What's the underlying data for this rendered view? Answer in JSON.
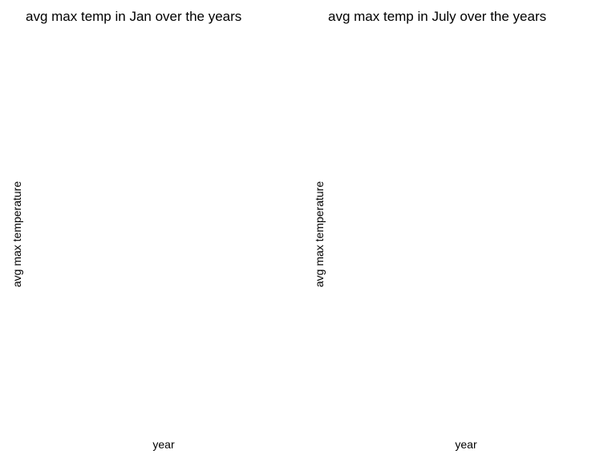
{
  "chart_data": [
    {
      "type": "line",
      "title": "avg max temp in Jan over the years",
      "xlabel": "year",
      "ylabel": "avg max temperature",
      "series": []
    },
    {
      "type": "line",
      "title": "avg max temp in July over the years",
      "xlabel": "year",
      "ylabel": "avg max temperature",
      "series": []
    }
  ]
}
